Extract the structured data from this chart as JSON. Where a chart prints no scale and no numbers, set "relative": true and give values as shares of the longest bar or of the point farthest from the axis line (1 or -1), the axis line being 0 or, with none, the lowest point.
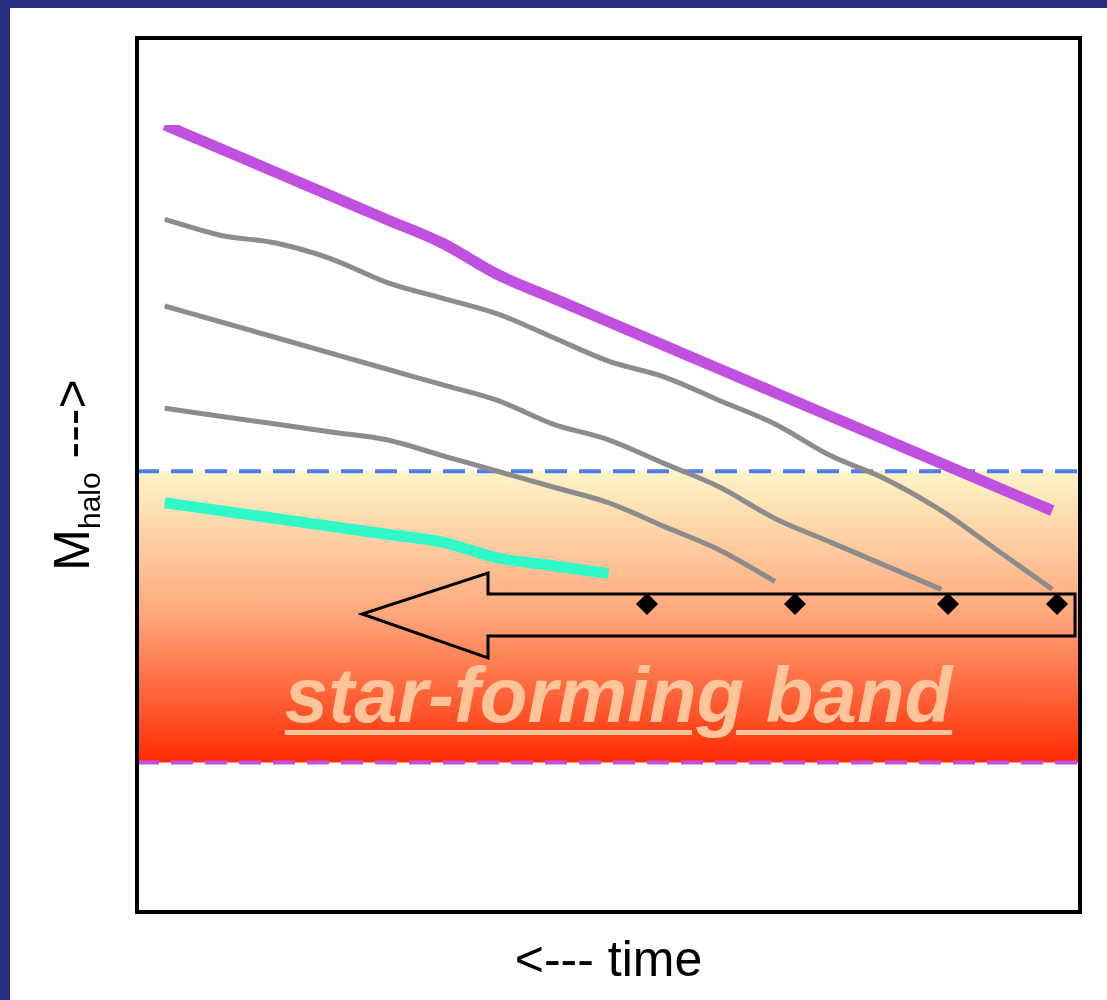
{
  "chart_data": {
    "type": "line",
    "relative": true,
    "xlabel": "<--- time",
    "ylabel": "M$_{halo}$ --->",
    "categories": [
      null,
      null,
      null,
      null,
      null,
      null,
      null,
      null,
      null,
      null,
      null,
      null,
      null,
      null,
      null,
      null,
      null
    ],
    "series": [
      {
        "color": "#c050e0",
        "values": [
          1.0,
          0.97,
          0.94,
          0.91,
          0.88,
          0.85,
          0.81,
          0.78,
          0.75,
          0.72,
          0.69,
          0.66,
          0.63,
          0.6,
          0.57,
          0.54,
          0.51
        ]
      },
      {
        "color": "#8c8c8c",
        "values": [
          0.88,
          0.86,
          0.85,
          0.83,
          0.8,
          0.78,
          0.76,
          0.73,
          0.7,
          0.68,
          0.65,
          0.62,
          0.58,
          0.55,
          0.51,
          0.46,
          0.41
        ]
      },
      {
        "color": "#8c8c8c",
        "values": [
          0.77,
          0.75,
          0.73,
          0.71,
          0.69,
          0.67,
          0.65,
          0.62,
          0.6,
          0.57,
          0.54,
          0.5,
          0.47,
          0.44,
          0.41,
          null,
          null
        ]
      },
      {
        "color": "#8c8c8c",
        "values": [
          0.64,
          0.63,
          0.62,
          0.61,
          0.6,
          0.58,
          0.56,
          0.54,
          0.52,
          0.49,
          0.46,
          0.42,
          null,
          null,
          null,
          null,
          null
        ]
      },
      {
        "color": "#30f8c8",
        "values": [
          0.52,
          0.51,
          0.5,
          0.49,
          0.48,
          0.47,
          0.45,
          0.44,
          0.43,
          null,
          null,
          null,
          null,
          null,
          null,
          null,
          null
        ]
      }
    ],
    "bands": [
      {
        "axis": "y",
        "from": 0.19,
        "to": 0.56,
        "label": "star-forming band",
        "color": "#ff2a00"
      }
    ],
    "ref_lines": [
      {
        "axis": "y",
        "value": 0.56,
        "color": "#4f7df0",
        "line_style": "dashed"
      },
      {
        "axis": "y",
        "value": 0.19,
        "color": "#c050e0",
        "line_style": "dashed"
      }
    ],
    "legend": false,
    "grid": false,
    "tick_labels": false
  }
}
